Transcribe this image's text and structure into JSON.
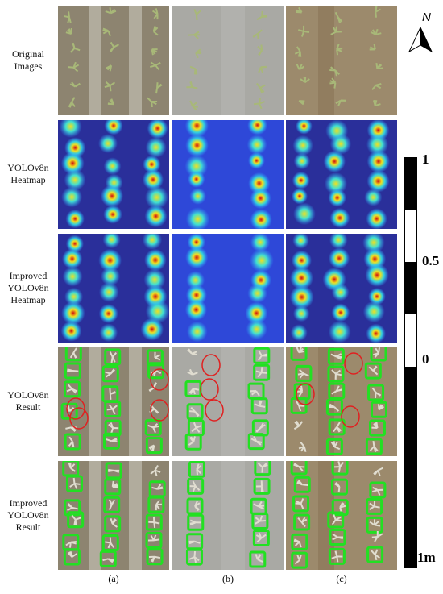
{
  "row_labels": [
    "Original Images",
    "YOLOv8n Heatmap",
    "Improved YOLOv8n Heatmap",
    "YOLOv8n Result",
    "Improved YOLOv8n Result"
  ],
  "column_labels": [
    "(a)",
    "(b)",
    "(c)"
  ],
  "scale_bar": {
    "labels": [
      "1",
      "0.5",
      "0",
      "1m"
    ]
  },
  "north_arrow": {
    "label": "N"
  }
}
